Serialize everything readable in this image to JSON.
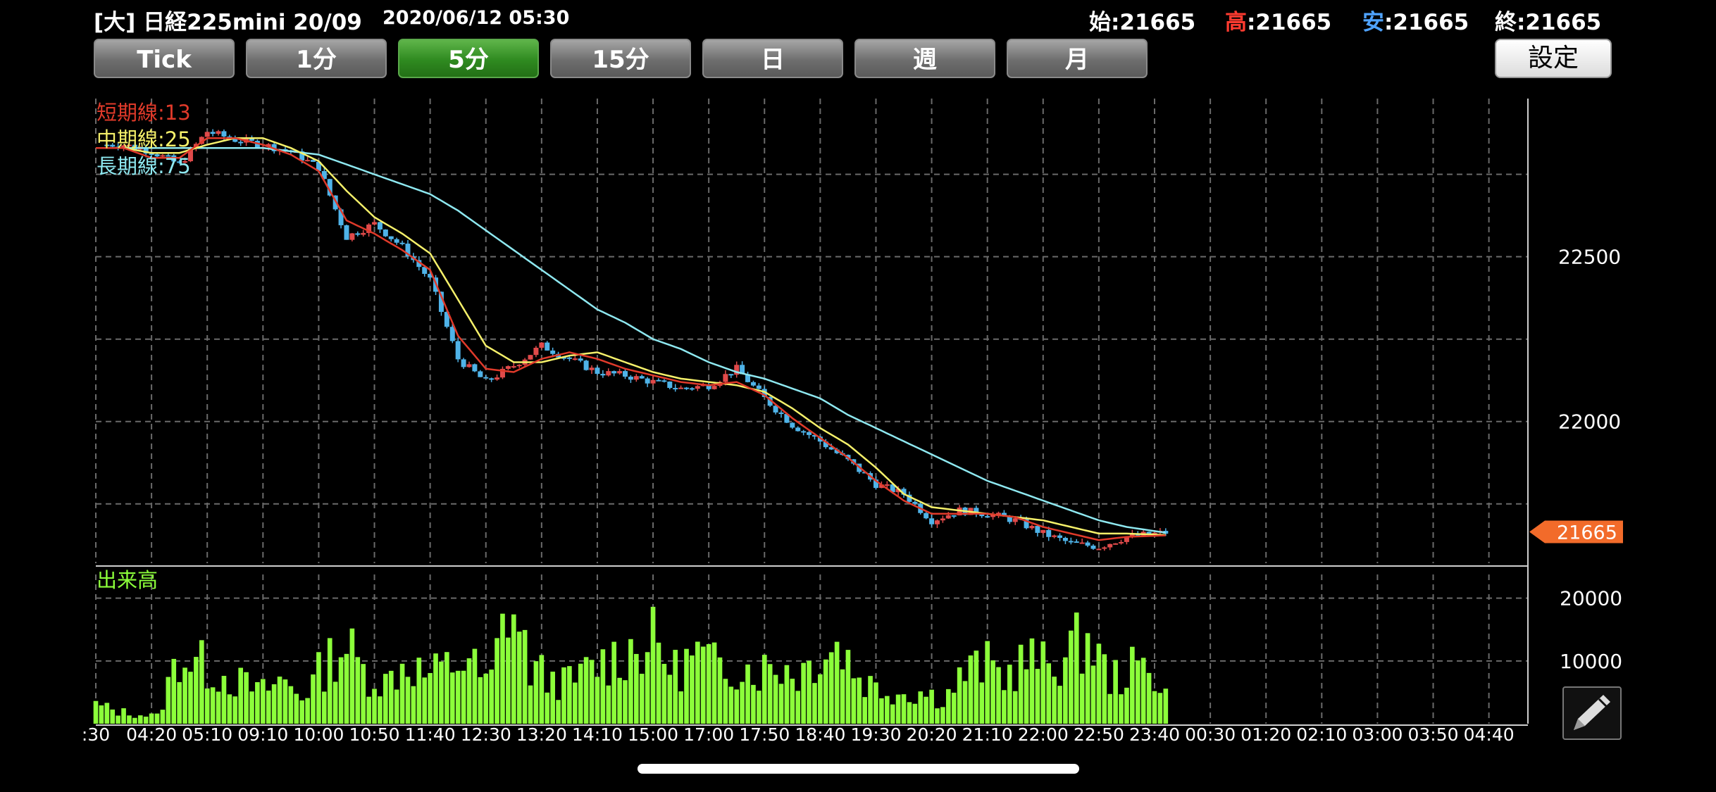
{
  "header": {
    "title": "[大] 日経225mini 20/09",
    "datetime": "2020/06/12 05:30",
    "ohlc": [
      {
        "label": "始",
        "value": "21665",
        "label_color": "#ffffff"
      },
      {
        "label": "高",
        "value": "21665",
        "label_color": "#ff3b30"
      },
      {
        "label": "安",
        "value": "21665",
        "label_color": "#4fa3ff"
      },
      {
        "label": "終",
        "value": "21665",
        "label_color": "#ffffff"
      }
    ]
  },
  "toolbar": {
    "intervals": [
      "Tick",
      "1分",
      "5分",
      "15分",
      "日",
      "週",
      "月"
    ],
    "active_interval": "5分",
    "settings_label": "設定"
  },
  "colors": {
    "up": "#e04a4a",
    "down": "#4fb3e8",
    "short_ma": "#e03a2a",
    "mid_ma": "#f5f06a",
    "long_ma": "#8ee8f0",
    "volume": "#8cff3a",
    "price_tag": "#f26b2a"
  },
  "chart_data": [
    {
      "type": "candlestick",
      "legend": [
        {
          "label": "短期線:13",
          "color": "#e03a2a"
        },
        {
          "label": "中期線:25",
          "color": "#f5f06a"
        },
        {
          "label": "長期線:75",
          "color": "#8ee8f0"
        }
      ],
      "y_ticks": [
        22500,
        22000
      ],
      "ylim": [
        21570,
        22980
      ],
      "last_price": 21665,
      "x_tick_labels": [
        ":30",
        "04:20",
        "05:10",
        "09:10",
        "10:00",
        "10:50",
        "11:40",
        "12:30",
        "13:20",
        "14:10",
        "15:00",
        "17:00",
        "17:50",
        "18:40",
        "19:30",
        "20:20",
        "21:10",
        "22:00",
        "22:50",
        "23:40",
        "00:30",
        "01:20",
        "02:10",
        "03:00",
        "03:50",
        "04:40"
      ],
      "close_by_tick": [
        22840,
        22840,
        22820,
        22780,
        22880,
        22855,
        22840,
        22820,
        22770,
        22560,
        22600,
        22530,
        22430,
        22190,
        22120,
        22170,
        22230,
        22190,
        22150,
        22140,
        22120,
        22100,
        22110,
        22160,
        22070,
        21990,
        21940,
        21880,
        21810,
        21780,
        21700,
        21730,
        21720,
        21700,
        21660,
        21630,
        21620,
        21650,
        21665
      ],
      "close_by_tick_note_x": [
        0,
        0.5,
        1,
        1.5,
        2,
        2.5,
        3,
        3.5,
        4,
        4.5,
        5,
        5.5,
        6,
        6.5,
        7,
        7.5,
        8,
        8.5,
        9,
        9.5,
        10,
        10.5,
        11,
        11.5,
        12,
        12.5,
        13,
        13.5,
        14,
        14.5,
        15,
        15.5,
        16,
        16.5,
        17,
        17.5,
        18,
        18.5,
        19.3
      ],
      "ma_short": [
        22830,
        22830,
        22800,
        22800,
        22860,
        22860,
        22840,
        22810,
        22760,
        22610,
        22570,
        22520,
        22460,
        22260,
        22160,
        22150,
        22190,
        22210,
        22190,
        22160,
        22140,
        22120,
        22110,
        22120,
        22080,
        22010,
        21950,
        21890,
        21820,
        21760,
        21720,
        21720,
        21720,
        21710,
        21680,
        21660,
        21640,
        21650,
        21655
      ],
      "ma_mid": [
        22830,
        22830,
        22815,
        22815,
        22840,
        22860,
        22860,
        22830,
        22790,
        22700,
        22620,
        22570,
        22510,
        22370,
        22230,
        22180,
        22180,
        22200,
        22210,
        22180,
        22150,
        22130,
        22120,
        22110,
        22090,
        22040,
        21980,
        21930,
        21860,
        21780,
        21740,
        21730,
        21720,
        21710,
        21700,
        21680,
        21660,
        21660,
        21655
      ],
      "ma_long": [
        22830,
        22830,
        22830,
        22830,
        22830,
        22830,
        22830,
        22820,
        22810,
        22780,
        22750,
        22720,
        22690,
        22640,
        22580,
        22520,
        22460,
        22400,
        22340,
        22300,
        22250,
        22220,
        22180,
        22150,
        22130,
        22100,
        22070,
        22020,
        21980,
        21940,
        21900,
        21860,
        21820,
        21790,
        21760,
        21730,
        21700,
        21680,
        21660
      ],
      "volume": {
        "label": "出来高",
        "y_ticks": [
          20000,
          10000
        ],
        "ylim": [
          0,
          24000
        ],
        "per_tick": [
          3000,
          2000,
          1500,
          1200,
          11000,
          9500,
          8000,
          6500,
          5000,
          7000,
          4500,
          9000,
          13000,
          8000,
          6500,
          10000,
          7500,
          9000,
          10500,
          5500,
          20000,
          9000,
          7000,
          6500,
          9000,
          10500,
          12000,
          13000,
          8500,
          11000,
          9000,
          9500,
          8500,
          9500,
          8000,
          11500,
          12500,
          7000,
          5500,
          5000,
          5000,
          4000,
          8000,
          9500,
          7500,
          10500,
          9000,
          11000,
          14000,
          7000,
          8500,
          9000,
          4000
        ]
      }
    }
  ]
}
